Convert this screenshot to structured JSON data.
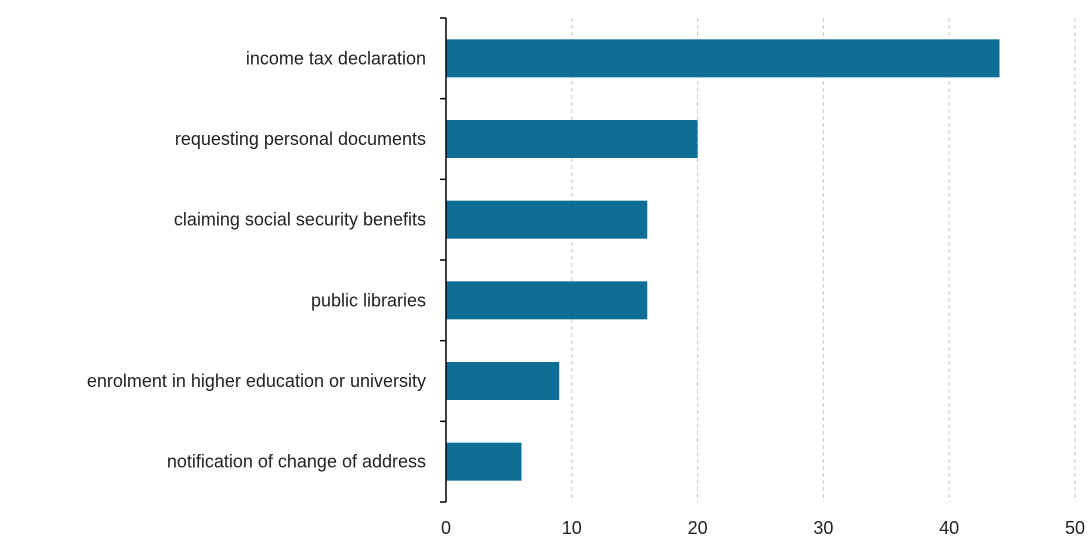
{
  "chart_data": {
    "type": "bar",
    "orientation": "horizontal",
    "categories": [
      "income tax declaration",
      "requesting personal documents",
      "claiming social security benefits",
      "public libraries",
      "enrolment in higher education or university",
      "notification of change of address"
    ],
    "values": [
      44,
      20,
      16,
      16,
      9,
      6
    ],
    "xlim": [
      0,
      50
    ],
    "xticks": [
      0,
      10,
      20,
      30,
      40,
      50
    ],
    "grid": "vertical-dashed",
    "legend": "none",
    "title": "",
    "xlabel": "",
    "ylabel": "",
    "colors": {
      "bar": "#0f6e96",
      "grid": "#c8c8c8",
      "axis": "#000000",
      "text": "#222222"
    }
  }
}
